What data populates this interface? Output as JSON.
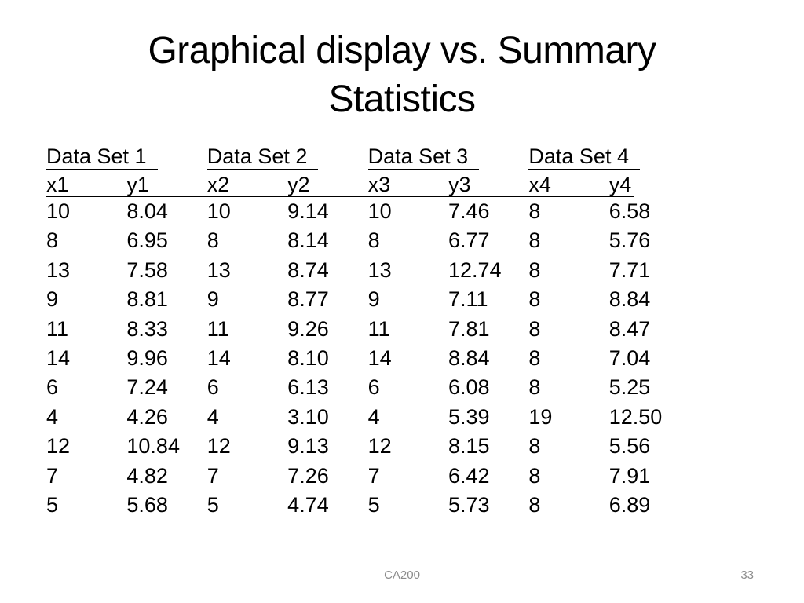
{
  "title": {
    "line1": "Graphical display vs. Summary",
    "line2": "Statistics"
  },
  "table": {
    "set_headers": [
      "Data Set 1",
      "Data Set 2",
      "Data Set 3",
      "Data Set 4"
    ],
    "column_headers": [
      "x1",
      "y1",
      "x2",
      "y2",
      "x3",
      "y3",
      "x4",
      "y4"
    ],
    "rows": [
      [
        "10",
        "8.04",
        "10",
        "9.14",
        "10",
        "7.46",
        "8",
        "6.58"
      ],
      [
        "8",
        "6.95",
        "8",
        "8.14",
        "8",
        "6.77",
        "8",
        "5.76"
      ],
      [
        "13",
        "7.58",
        "13",
        "8.74",
        "13",
        "12.74",
        "8",
        "7.71"
      ],
      [
        "9",
        "8.81",
        "9",
        "8.77",
        "9",
        "7.11",
        "8",
        "8.84"
      ],
      [
        "11",
        "8.33",
        "11",
        "9.26",
        "11",
        "7.81",
        "8",
        "8.47"
      ],
      [
        "14",
        "9.96",
        "14",
        "8.10",
        "14",
        "8.84",
        "8",
        "7.04"
      ],
      [
        "6",
        "7.24",
        "6",
        "6.13",
        "6",
        "6.08",
        "8",
        "5.25"
      ],
      [
        "4",
        "4.26",
        "4",
        "3.10",
        "4",
        "5.39",
        "19",
        "12.50"
      ],
      [
        "12",
        "10.84",
        "12",
        "9.13",
        "12",
        "8.15",
        "8",
        "5.56"
      ],
      [
        "7",
        "4.82",
        "7",
        "7.26",
        "7",
        "6.42",
        "8",
        "7.91"
      ],
      [
        "5",
        "5.68",
        "5",
        "4.74",
        "5",
        "5.73",
        "8",
        "6.89"
      ]
    ]
  },
  "footer": {
    "course_code": "CA200",
    "page_number": "33"
  },
  "colors": {
    "background": "#ffffff",
    "text": "#000000",
    "footer_text": "#8c8c8c"
  }
}
